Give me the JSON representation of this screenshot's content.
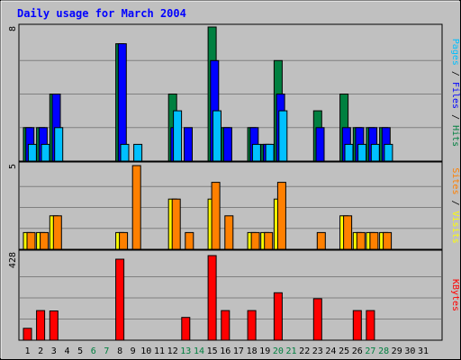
{
  "chart_data": {
    "type": "bar",
    "title": "Daily usage for March 2004",
    "days": [
      "1",
      "2",
      "3",
      "4",
      "5",
      "6",
      "7",
      "8",
      "9",
      "10",
      "11",
      "12",
      "13",
      "14",
      "15",
      "16",
      "17",
      "18",
      "19",
      "20",
      "21",
      "22",
      "23",
      "24",
      "25",
      "26",
      "27",
      "28",
      "29",
      "30",
      "31"
    ],
    "weekend_days": [
      "6",
      "7",
      "13",
      "14",
      "20",
      "21",
      "27",
      "28"
    ],
    "panels": [
      {
        "name": "hits-files-pages",
        "y_max_label": "8",
        "ylim": [
          0,
          8
        ],
        "labels": [
          {
            "text": "Pages",
            "color": "#00c0ff"
          },
          {
            "text": " / ",
            "color": "#000000"
          },
          {
            "text": "Files",
            "color": "#0000ff"
          },
          {
            "text": " / ",
            "color": "#000000"
          },
          {
            "text": "Hits",
            "color": "#008040"
          }
        ],
        "series": [
          {
            "name": "Hits",
            "color": "#008040",
            "values": [
              2,
              2,
              4,
              0,
              0,
              0,
              0,
              7,
              0,
              0,
              0,
              4,
              0,
              0,
              8,
              2,
              0,
              2,
              1,
              6,
              0,
              0,
              3,
              0,
              4,
              2,
              2,
              2,
              0,
              0,
              0
            ]
          },
          {
            "name": "Files",
            "color": "#0000ff",
            "values": [
              2,
              2,
              4,
              0,
              0,
              0,
              0,
              7,
              0,
              0,
              0,
              2,
              2,
              0,
              6,
              2,
              0,
              2,
              1,
              4,
              0,
              0,
              2,
              0,
              2,
              2,
              2,
              2,
              0,
              0,
              0
            ]
          },
          {
            "name": "Pages",
            "color": "#00c0ff",
            "values": [
              1,
              1,
              2,
              0,
              0,
              0,
              0,
              1,
              1,
              0,
              0,
              3,
              0,
              0,
              3,
              0,
              0,
              1,
              1,
              3,
              0,
              0,
              0,
              0,
              1,
              1,
              1,
              1,
              0,
              0,
              0
            ]
          }
        ]
      },
      {
        "name": "visits-sites",
        "y_max_label": "5",
        "ylim": [
          0,
          5
        ],
        "labels": [
          {
            "text": "Sites",
            "color": "#ff8000"
          },
          {
            "text": " / ",
            "color": "#000000"
          },
          {
            "text": "Visits",
            "color": "#ffff00"
          }
        ],
        "series": [
          {
            "name": "Visits",
            "color": "#ffff00",
            "values": [
              1,
              1,
              2,
              0,
              0,
              0,
              0,
              1,
              0,
              0,
              0,
              3,
              0,
              0,
              3,
              0,
              0,
              1,
              1,
              3,
              0,
              0,
              0,
              0,
              2,
              1,
              1,
              1,
              0,
              0,
              0
            ]
          },
          {
            "name": "Sites",
            "color": "#ff8000",
            "values": [
              1,
              1,
              2,
              0,
              0,
              0,
              0,
              1,
              5,
              0,
              0,
              3,
              1,
              0,
              4,
              2,
              0,
              1,
              1,
              4,
              0,
              0,
              1,
              0,
              2,
              1,
              1,
              1,
              0,
              0,
              0
            ]
          }
        ]
      },
      {
        "name": "kbytes",
        "y_max_label": "428",
        "ylim": [
          0,
          428
        ],
        "labels": [
          {
            "text": "KBytes",
            "color": "#ff0000"
          }
        ],
        "series": [
          {
            "name": "KBytes",
            "color": "#ff0000",
            "values": [
              60,
              150,
              148,
              0,
              0,
              0,
              0,
              410,
              0,
              0,
              0,
              0,
              115,
              0,
              428,
              150,
              0,
              150,
              0,
              240,
              0,
              0,
              210,
              0,
              0,
              150,
              150,
              0,
              0,
              0,
              0
            ]
          }
        ]
      }
    ]
  }
}
